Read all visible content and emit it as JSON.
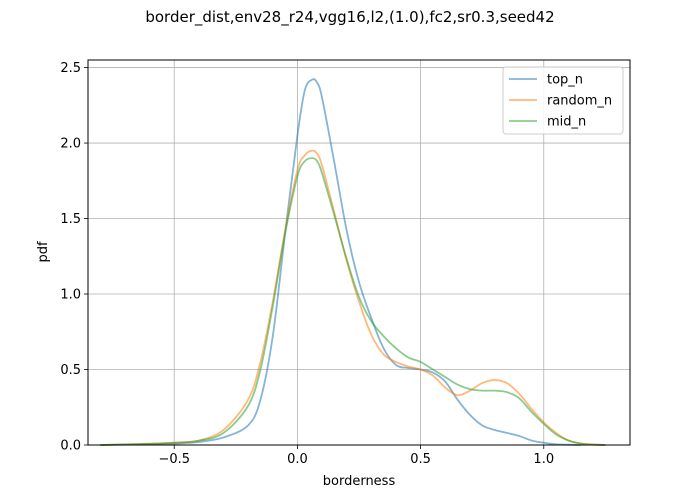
{
  "chart_data": {
    "type": "line",
    "title": "border_dist,env28_r24,vgg16,l2,(1.0),fc2,sr0.3,seed42",
    "xlabel": "borderness",
    "ylabel": "pdf",
    "xlim": [
      -0.85,
      1.35
    ],
    "ylim": [
      0,
      2.55
    ],
    "xticks": [
      -0.5,
      0.0,
      0.5,
      1.0
    ],
    "xtick_labels": [
      "−0.5",
      "0.0",
      "0.5",
      "1.0"
    ],
    "yticks": [
      0.0,
      0.5,
      1.0,
      1.5,
      2.0,
      2.5
    ],
    "ytick_labels": [
      "0.0",
      "0.5",
      "1.0",
      "1.5",
      "2.0",
      "2.5"
    ],
    "grid": true,
    "legend_position": "top-right",
    "series": [
      {
        "name": "top_n",
        "color": "#1f77b4",
        "x": [
          -0.8,
          -0.6,
          -0.5,
          -0.4,
          -0.3,
          -0.2,
          -0.15,
          -0.1,
          -0.05,
          0.0,
          0.03,
          0.06,
          0.08,
          0.1,
          0.15,
          0.2,
          0.25,
          0.3,
          0.35,
          0.4,
          0.45,
          0.5,
          0.55,
          0.6,
          0.65,
          0.7,
          0.75,
          0.8,
          0.85,
          0.9,
          0.95,
          1.0,
          1.05,
          1.1,
          1.15
        ],
        "y": [
          0.0,
          0.005,
          0.01,
          0.02,
          0.05,
          0.13,
          0.3,
          0.72,
          1.4,
          2.05,
          2.35,
          2.42,
          2.4,
          2.3,
          1.87,
          1.42,
          1.08,
          0.84,
          0.64,
          0.53,
          0.51,
          0.5,
          0.48,
          0.42,
          0.3,
          0.2,
          0.13,
          0.1,
          0.08,
          0.06,
          0.03,
          0.015,
          0.005,
          0.002,
          0.0
        ]
      },
      {
        "name": "random_n",
        "color": "#ff7f0e",
        "x": [
          -0.8,
          -0.6,
          -0.5,
          -0.4,
          -0.3,
          -0.2,
          -0.15,
          -0.1,
          -0.05,
          0.0,
          0.03,
          0.06,
          0.08,
          0.1,
          0.15,
          0.2,
          0.25,
          0.3,
          0.35,
          0.4,
          0.45,
          0.5,
          0.55,
          0.6,
          0.65,
          0.7,
          0.75,
          0.8,
          0.85,
          0.9,
          0.95,
          1.0,
          1.05,
          1.1,
          1.15,
          1.2,
          1.25
        ],
        "y": [
          0.0,
          0.008,
          0.015,
          0.03,
          0.1,
          0.3,
          0.55,
          0.95,
          1.42,
          1.82,
          1.92,
          1.95,
          1.93,
          1.85,
          1.54,
          1.22,
          0.95,
          0.73,
          0.6,
          0.55,
          0.52,
          0.5,
          0.46,
          0.38,
          0.33,
          0.36,
          0.41,
          0.43,
          0.41,
          0.34,
          0.24,
          0.15,
          0.08,
          0.03,
          0.01,
          0.003,
          0.0
        ]
      },
      {
        "name": "mid_n",
        "color": "#2ca02c",
        "x": [
          -0.8,
          -0.6,
          -0.5,
          -0.4,
          -0.3,
          -0.2,
          -0.15,
          -0.1,
          -0.05,
          0.0,
          0.03,
          0.06,
          0.08,
          0.1,
          0.15,
          0.2,
          0.25,
          0.3,
          0.35,
          0.4,
          0.45,
          0.5,
          0.55,
          0.6,
          0.65,
          0.7,
          0.75,
          0.8,
          0.85,
          0.9,
          0.95,
          1.0,
          1.05,
          1.1,
          1.15,
          1.2,
          1.25
        ],
        "y": [
          0.0,
          0.008,
          0.015,
          0.028,
          0.08,
          0.26,
          0.5,
          0.92,
          1.4,
          1.78,
          1.88,
          1.9,
          1.88,
          1.8,
          1.52,
          1.23,
          0.98,
          0.82,
          0.72,
          0.64,
          0.58,
          0.55,
          0.5,
          0.45,
          0.4,
          0.37,
          0.36,
          0.36,
          0.35,
          0.31,
          0.22,
          0.14,
          0.07,
          0.03,
          0.01,
          0.003,
          0.0
        ]
      }
    ]
  }
}
